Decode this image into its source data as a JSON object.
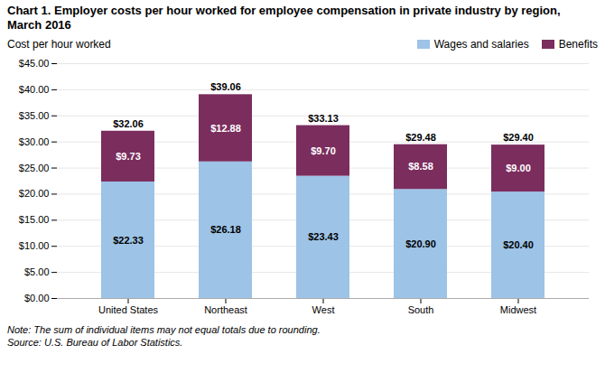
{
  "chart_data": {
    "type": "bar",
    "stacked": true,
    "title": "Chart 1. Employer costs per hour worked for employee compensation in private industry by region, March 2016",
    "ylabel": "Cost per hour worked",
    "categories": [
      "United States",
      "Northeast",
      "West",
      "South",
      "Midwest"
    ],
    "series": [
      {
        "name": "Wages and salaries",
        "color": "#9DC3E6",
        "values": [
          22.33,
          26.18,
          23.43,
          20.9,
          20.4
        ],
        "value_labels": [
          "$22.33",
          "$26.18",
          "$23.43",
          "$20.90",
          "$20.40"
        ]
      },
      {
        "name": "Benefits",
        "color": "#7B2D5E",
        "values": [
          9.73,
          12.88,
          9.7,
          8.58,
          9.0
        ],
        "value_labels": [
          "$9.73",
          "$12.88",
          "$9.70",
          "$8.58",
          "$9.00"
        ]
      }
    ],
    "totals": [
      32.06,
      39.06,
      33.13,
      29.48,
      29.4
    ],
    "total_labels": [
      "$32.06",
      "$39.06",
      "$33.13",
      "$29.48",
      "$29.40"
    ],
    "ylim": [
      0,
      45
    ],
    "yticks": [
      {
        "value": 0,
        "label": "$0.00"
      },
      {
        "value": 5,
        "label": "$5.00"
      },
      {
        "value": 10,
        "label": "$10.00"
      },
      {
        "value": 15,
        "label": "$15.00"
      },
      {
        "value": 20,
        "label": "$20.00"
      },
      {
        "value": 25,
        "label": "$25.00"
      },
      {
        "value": 30,
        "label": "$30.00"
      },
      {
        "value": 35,
        "label": "$35.00"
      },
      {
        "value": 40,
        "label": "$40.00"
      },
      {
        "value": 45,
        "label": "$45.00"
      }
    ],
    "grid": true,
    "legend": "upper right",
    "data_labels": true,
    "annotations": [
      "Note: The sum of individual items may not equal totals due to rounding.",
      "Source: U.S. Bureau of Labor Statistics."
    ]
  }
}
